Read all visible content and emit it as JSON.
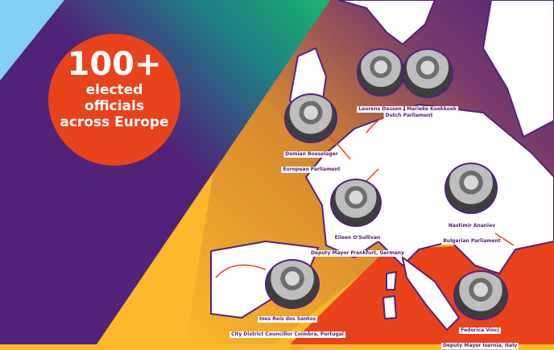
{
  "headline": {
    "number": "100+",
    "lines": [
      "elected",
      "officials",
      "across Europe"
    ]
  },
  "colors": {
    "purple": "#502379",
    "orange": "#e9431c",
    "yellow": "#fbb82a",
    "green": "#1bb56e",
    "light_blue": "#82d0f4"
  },
  "officials": [
    {
      "name": "Laurens Dassen",
      "role": ""
    },
    {
      "name": "Marieke Koekkoek",
      "role": "Dutch Parliament"
    },
    {
      "name": "Damian Boeselager",
      "role": "European Parliament"
    },
    {
      "name": "Eileen O'Sullivan",
      "role": "Deputy Mayor Frankfurt, Germany"
    },
    {
      "name": "Nastimir Ananiev",
      "role": "Bulgarian Parliament"
    },
    {
      "name": "Ines Reis dos Santos",
      "role": "City District Councillor Coimbra, Portugal"
    },
    {
      "name": "Federica Vinci",
      "role": "Deputy Mayor Isernia, Italy"
    }
  ]
}
